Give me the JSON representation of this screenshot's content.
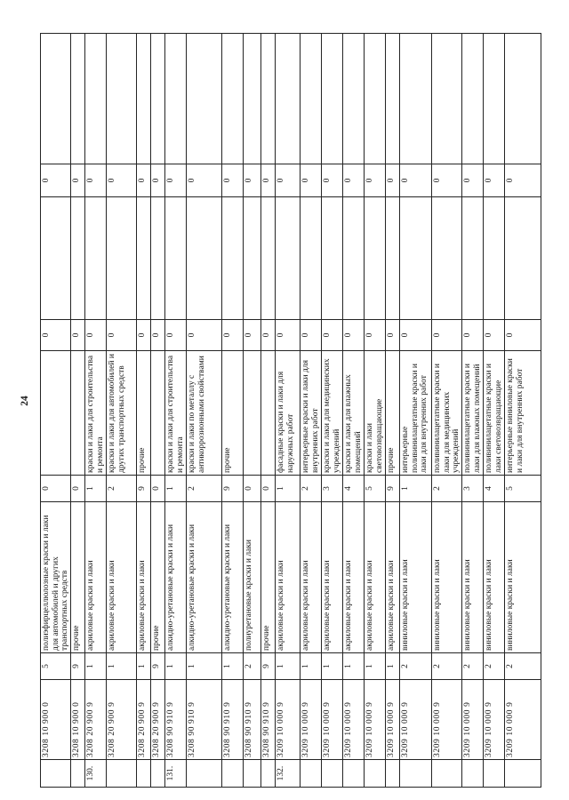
{
  "page": {
    "number": "24"
  },
  "table": {
    "rows": [
      {
        "num": "",
        "code": "3208 10 900 0",
        "d1": "5",
        "name1": "полиэфирцеллюлозные краски и лаки для автомобилей и других транспортных средств",
        "d2": "0",
        "name2": "",
        "z1": "0",
        "e1": "",
        "z2": "0",
        "e2": ""
      },
      {
        "num": "",
        "code": "3208 10 900 0",
        "d1": "9",
        "name1": "прочие",
        "d2": "0",
        "name2": "",
        "z1": "0",
        "e1": "",
        "z2": "0",
        "e2": ""
      },
      {
        "num": "130.",
        "code": "3208 20 900 9",
        "d1": "1",
        "name1": "акриловые краски и лаки",
        "d2": "1",
        "name2": "краски и лаки для строительства и ремонта",
        "z1": "0",
        "e1": "",
        "z2": "0",
        "e2": ""
      },
      {
        "num": "",
        "code": "3208 20 900 9",
        "d1": "1",
        "name1": "акриловые краски и лаки",
        "d2": "2",
        "name2": "краски и лаки для автомобилей и других транспортных средств",
        "z1": "0",
        "e1": "",
        "z2": "0",
        "e2": ""
      },
      {
        "num": "",
        "code": "3208 20 900 9",
        "d1": "1",
        "name1": "акриловые краски и лаки",
        "d2": "9",
        "name2": "прочие",
        "z1": "0",
        "e1": "",
        "z2": "0",
        "e2": ""
      },
      {
        "num": "",
        "code": "3208 20 900 9",
        "d1": "9",
        "name1": "прочие",
        "d2": "0",
        "name2": "",
        "z1": "0",
        "e1": "",
        "z2": "0",
        "e2": ""
      },
      {
        "num": "131.",
        "code": "3208 90 910 9",
        "d1": "1",
        "name1": "алкидно-уретановые краски и лаки",
        "d2": "1",
        "name2": "краски и лаки для строительства и ремонта",
        "z1": "0",
        "e1": "",
        "z2": "0",
        "e2": ""
      },
      {
        "num": "",
        "code": "3208 90 910 9",
        "d1": "1",
        "name1": "алкидно-уретановые краски и лаки",
        "d2": "2",
        "name2": "краски и лаки по металлу с антикоррозионными свойствами",
        "z1": "0",
        "e1": "",
        "z2": "0",
        "e2": ""
      },
      {
        "num": "",
        "code": "3208 90 910 9",
        "d1": "1",
        "name1": "алкидно-уретановые краски и лаки",
        "d2": "9",
        "name2": "прочие",
        "z1": "0",
        "e1": "",
        "z2": "0",
        "e2": ""
      },
      {
        "num": "",
        "code": "3208 90 910 9",
        "d1": "2",
        "name1": "полиуретановые краски и лаки",
        "d2": "0",
        "name2": "",
        "z1": "0",
        "e1": "",
        "z2": "0",
        "e2": ""
      },
      {
        "num": "",
        "code": "3208 90 910 9",
        "d1": "9",
        "name1": "прочие",
        "d2": "0",
        "name2": "",
        "z1": "0",
        "e1": "",
        "z2": "0",
        "e2": ""
      },
      {
        "num": "132.",
        "code": "3209 10 000 9",
        "d1": "1",
        "name1": "акриловые краски и лаки",
        "d2": "1",
        "name2": "фасадные краски и лаки для наружных работ",
        "z1": "0",
        "e1": "",
        "z2": "0",
        "e2": ""
      },
      {
        "num": "",
        "code": "3209 10 000 9",
        "d1": "1",
        "name1": "акриловые краски и лаки",
        "d2": "2",
        "name2": "интерьерные краски и лаки для внутренних работ",
        "z1": "0",
        "e1": "",
        "z2": "0",
        "e2": ""
      },
      {
        "num": "",
        "code": "3209 10 000 9",
        "d1": "1",
        "name1": "акриловые краски и лаки",
        "d2": "3",
        "name2": "краски и лаки для медицинских учреждений",
        "z1": "0",
        "e1": "",
        "z2": "0",
        "e2": ""
      },
      {
        "num": "",
        "code": "3209 10 000 9",
        "d1": "1",
        "name1": "акриловые краски и лаки",
        "d2": "4",
        "name2": "краски и лаки для влажных помещений",
        "z1": "0",
        "e1": "",
        "z2": "0",
        "e2": ""
      },
      {
        "num": "",
        "code": "3209 10 000 9",
        "d1": "1",
        "name1": "акриловые краски и лаки",
        "d2": "5",
        "name2": "краски и лаки световозвращающие",
        "z1": "0",
        "e1": "",
        "z2": "0",
        "e2": ""
      },
      {
        "num": "",
        "code": "3209 10 000 9",
        "d1": "1",
        "name1": "акриловые краски и лаки",
        "d2": "9",
        "name2": "прочие",
        "z1": "0",
        "e1": "",
        "z2": "0",
        "e2": ""
      },
      {
        "num": "",
        "code": "3209 10 000 9",
        "d1": "2",
        "name1": "виниловые краски и лаки",
        "d2": "1",
        "name2": "интерьерные поливинилацетатные краски и лаки для внутренних работ",
        "z1": "0",
        "e1": "",
        "z2": "0",
        "e2": ""
      },
      {
        "num": "",
        "code": "3209 10 000 9",
        "d1": "2",
        "name1": "виниловые краски и лаки",
        "d2": "2",
        "name2": "поливинилацетатные краски и лаки для медицинских учреждений",
        "z1": "0",
        "e1": "",
        "z2": "0",
        "e2": ""
      },
      {
        "num": "",
        "code": "3209 10 000 9",
        "d1": "2",
        "name1": "виниловые краски и лаки",
        "d2": "3",
        "name2": "поливинилацетатные краски и лаки для влажных помещений",
        "z1": "0",
        "e1": "",
        "z2": "0",
        "e2": ""
      },
      {
        "num": "",
        "code": "3209 10 000 9",
        "d1": "2",
        "name1": "виниловые краски и лаки",
        "d2": "4",
        "name2": "поливинилацетатные краски и лаки световозвращающие",
        "z1": "0",
        "e1": "",
        "z2": "0",
        "e2": ""
      },
      {
        "num": "",
        "code": "3209 10 000 9",
        "d1": "2",
        "name1": "виниловые краски и лаки",
        "d2": "5",
        "name2": "интерьерные виниловые краски и лаки для внутренних работ",
        "z1": "0",
        "e1": "",
        "z2": "0",
        "e2": ""
      }
    ]
  }
}
